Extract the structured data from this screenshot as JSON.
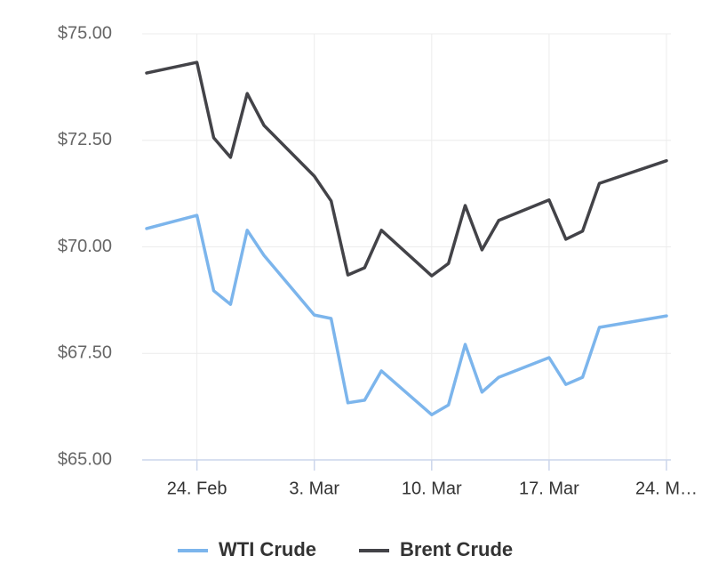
{
  "chart_data": {
    "type": "line",
    "x": [
      "21. Feb",
      "24. Feb",
      "25. Feb",
      "26. Feb",
      "27. Feb",
      "28. Feb",
      "3. Mar",
      "4. Mar",
      "5. Mar",
      "6. Mar",
      "7. Mar",
      "10. Mar",
      "11. Mar",
      "12. Mar",
      "13. Mar",
      "14. Mar",
      "17. Mar",
      "18. Mar",
      "19. Mar",
      "20. Mar",
      "24. Mar"
    ],
    "series": [
      {
        "name": "WTI Crude",
        "color": "#7cb5ec",
        "values": [
          70.43,
          70.74,
          68.97,
          68.65,
          70.39,
          69.8,
          68.4,
          68.32,
          66.34,
          66.4,
          67.09,
          66.06,
          66.29,
          67.71,
          66.59,
          66.94,
          67.4,
          66.77,
          66.94,
          68.11,
          68.38
        ]
      },
      {
        "name": "Brent Crude",
        "color": "#434348",
        "values": [
          74.08,
          74.33,
          72.56,
          72.1,
          73.6,
          72.85,
          71.66,
          71.08,
          69.34,
          69.51,
          70.39,
          69.32,
          69.61,
          70.97,
          69.93,
          70.62,
          71.1,
          70.18,
          70.37,
          71.49,
          72.02
        ]
      }
    ],
    "xlim": [
      "21. Feb",
      "24. Mar"
    ],
    "xticks": [
      "24. Feb",
      "3. Mar",
      "10. Mar",
      "17. Mar",
      {
        "value": "24. Mar",
        "label": "24. M…"
      }
    ],
    "ylim": [
      65,
      75
    ],
    "yticks": [
      {
        "value": 65,
        "label": "$65.00"
      },
      {
        "value": 67.5,
        "label": "$67.50"
      },
      {
        "value": 70,
        "label": "$70.00"
      },
      {
        "value": 72.5,
        "label": "$72.50"
      },
      {
        "value": 75,
        "label": "$75.00"
      }
    ],
    "grid": true,
    "legend": "bottom"
  }
}
